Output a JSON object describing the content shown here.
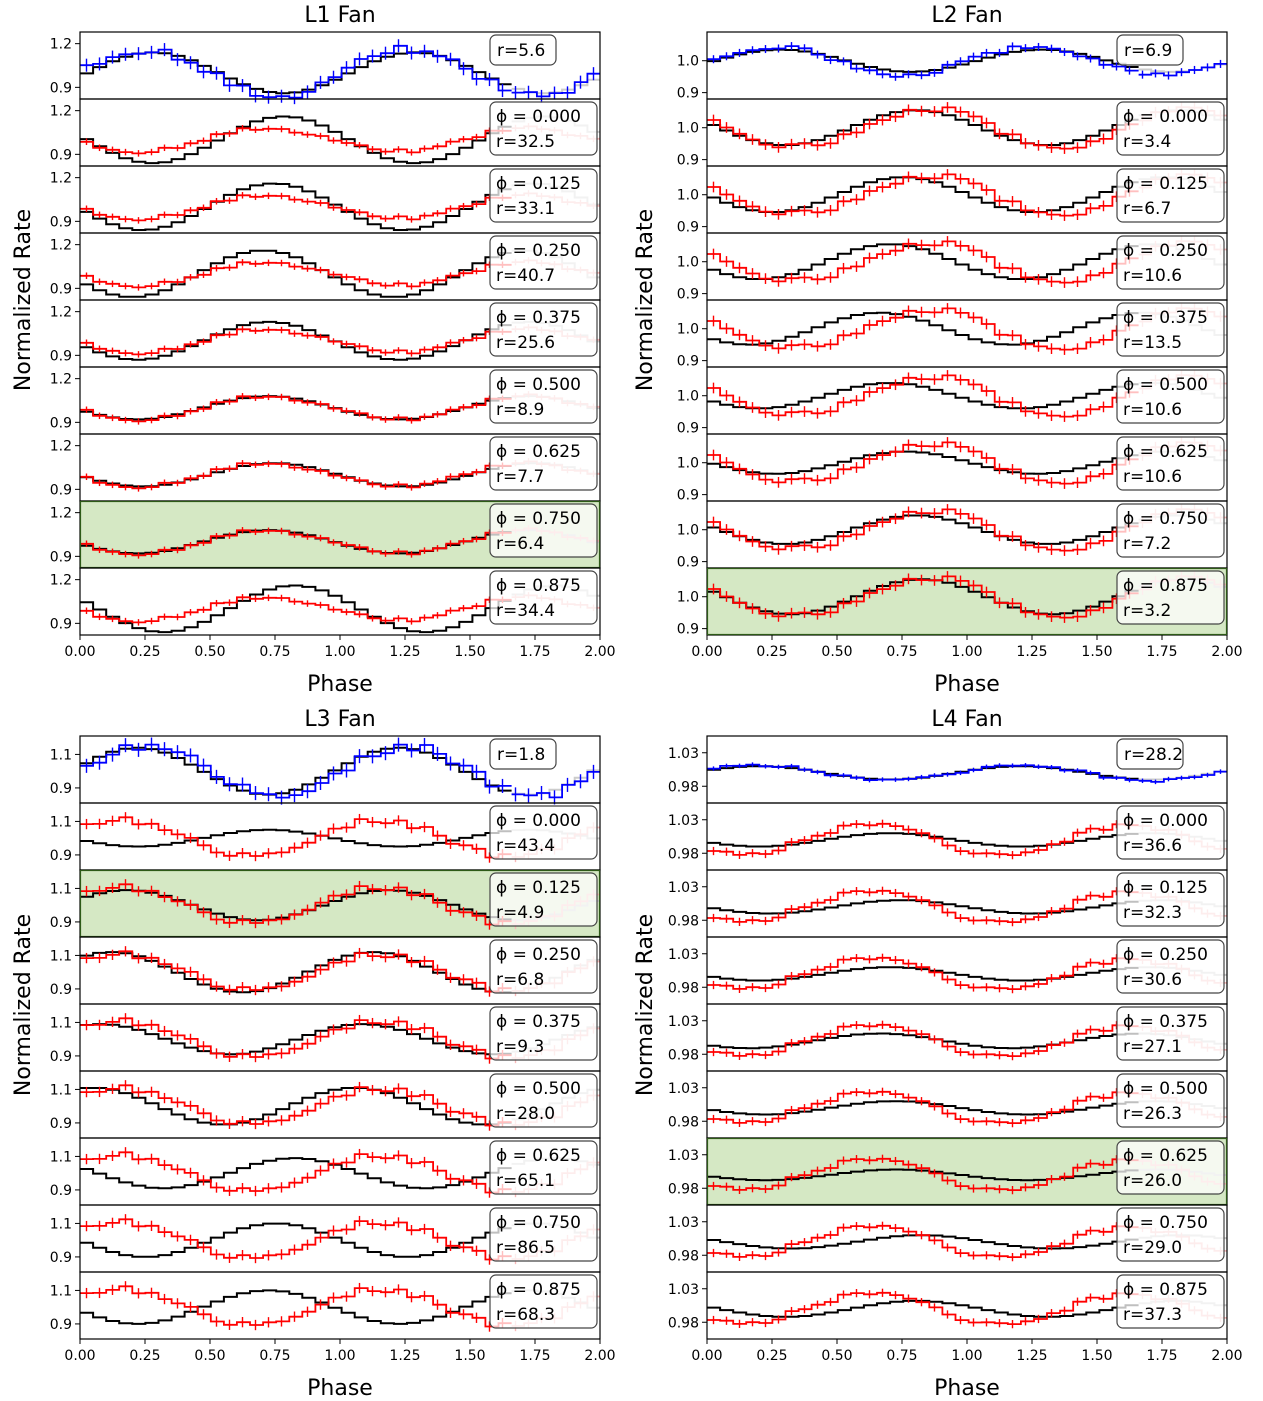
{
  "chart_data": [
    {
      "type": "line",
      "title": "L1 Fan",
      "xlabel": "Phase",
      "ylabel": "Normalized Rate",
      "xlim": [
        0,
        2
      ],
      "xticks": [
        "0.00",
        "0.25",
        "0.50",
        "0.75",
        "1.00",
        "1.25",
        "1.50",
        "1.75",
        "2.00"
      ],
      "ylim": [
        0.82,
        1.28
      ],
      "yticks": [
        "0.9",
        "1.2"
      ],
      "ytick_values": [
        0.9,
        1.2
      ],
      "top": {
        "r_label": "r=5.6",
        "ref_amp": 0.14,
        "ref_peak": 0.28,
        "obs_amp": 0.16,
        "obs_peak": 0.25
      },
      "panels": [
        {
          "phi_label": "ϕ = 0.000",
          "r_label": "r=32.5",
          "ref_amp": 0.16,
          "ref_peak": 0.78,
          "highlight": false
        },
        {
          "phi_label": "ϕ = 0.125",
          "r_label": "r=33.1",
          "ref_amp": 0.16,
          "ref_peak": 0.74,
          "highlight": false
        },
        {
          "phi_label": "ϕ = 0.250",
          "r_label": "r=40.7",
          "ref_amp": 0.16,
          "ref_peak": 0.7,
          "highlight": false
        },
        {
          "phi_label": "ϕ = 0.375",
          "r_label": "r=25.6",
          "ref_amp": 0.13,
          "ref_peak": 0.72,
          "highlight": false
        },
        {
          "phi_label": "ϕ = 0.500",
          "r_label": "r=8.9",
          "ref_amp": 0.08,
          "ref_peak": 0.72,
          "highlight": false
        },
        {
          "phi_label": "ϕ = 0.625",
          "r_label": "r=7.7",
          "ref_amp": 0.08,
          "ref_peak": 0.74,
          "highlight": false
        },
        {
          "phi_label": "ϕ = 0.750",
          "r_label": "r=6.4",
          "ref_amp": 0.08,
          "ref_peak": 0.72,
          "highlight": true
        },
        {
          "phi_label": "ϕ = 0.875",
          "r_label": "r=34.4",
          "ref_amp": 0.16,
          "ref_peak": 0.82,
          "highlight": false
        }
      ],
      "obs_amp": 0.08,
      "obs_peak": 0.72
    },
    {
      "type": "line",
      "title": "L2 Fan",
      "xlabel": "Phase",
      "ylabel": "Normalized Rate",
      "xlim": [
        0,
        2
      ],
      "xticks": [
        "0.00",
        "0.25",
        "0.50",
        "0.75",
        "1.00",
        "1.25",
        "1.50",
        "1.75",
        "2.00"
      ],
      "ylim": [
        0.88,
        1.09
      ],
      "yticks": [
        "0.9",
        "1.0"
      ],
      "ytick_values": [
        0.9,
        1.0
      ],
      "top": {
        "r_label": "r=6.9",
        "ref_amp": 0.035,
        "ref_peak": 0.28,
        "obs_amp": 0.045,
        "obs_peak": 0.25
      },
      "panels": [
        {
          "phi_label": "ϕ = 0.000",
          "r_label": "r=3.4",
          "ref_amp": 0.055,
          "ref_peak": 0.8,
          "highlight": false
        },
        {
          "phi_label": "ϕ = 0.125",
          "r_label": "r=6.7",
          "ref_amp": 0.055,
          "ref_peak": 0.75,
          "highlight": false
        },
        {
          "phi_label": "ϕ = 0.250",
          "r_label": "r=10.6",
          "ref_amp": 0.055,
          "ref_peak": 0.7,
          "highlight": false
        },
        {
          "phi_label": "ϕ = 0.375",
          "r_label": "r=13.5",
          "ref_amp": 0.05,
          "ref_peak": 0.66,
          "highlight": false
        },
        {
          "phi_label": "ϕ = 0.500",
          "r_label": "r=10.6",
          "ref_amp": 0.04,
          "ref_peak": 0.7,
          "highlight": false
        },
        {
          "phi_label": "ϕ = 0.625",
          "r_label": "r=10.6",
          "ref_amp": 0.035,
          "ref_peak": 0.76,
          "highlight": false
        },
        {
          "phi_label": "ϕ = 0.750",
          "r_label": "r=7.2",
          "ref_amp": 0.045,
          "ref_peak": 0.8,
          "highlight": false
        },
        {
          "phi_label": "ϕ = 0.875",
          "r_label": "r=3.2",
          "ref_amp": 0.055,
          "ref_peak": 0.82,
          "highlight": true
        }
      ],
      "obs_amp": 0.06,
      "obs_peak": 0.85
    },
    {
      "type": "line",
      "title": "L3 Fan",
      "xlabel": "Phase",
      "ylabel": "Normalized Rate",
      "xlim": [
        0,
        2
      ],
      "xticks": [
        "0.00",
        "0.25",
        "0.50",
        "0.75",
        "1.00",
        "1.25",
        "1.50",
        "1.75",
        "2.00"
      ],
      "ylim": [
        0.81,
        1.21
      ],
      "yticks": [
        "0.9",
        "1.1"
      ],
      "ytick_values": [
        0.9,
        1.1
      ],
      "top": {
        "r_label": "r=1.8",
        "ref_amp": 0.14,
        "ref_peak": 0.22,
        "obs_amp": 0.15,
        "obs_peak": 0.25
      },
      "panels": [
        {
          "phi_label": "ϕ = 0.000",
          "r_label": "r=43.4",
          "ref_amp": 0.05,
          "ref_peak": 0.72,
          "highlight": false
        },
        {
          "phi_label": "ϕ = 0.125",
          "r_label": "r=4.9",
          "ref_amp": 0.09,
          "ref_peak": 0.18,
          "highlight": true
        },
        {
          "phi_label": "ϕ = 0.250",
          "r_label": "r=6.8",
          "ref_amp": 0.12,
          "ref_peak": 0.12,
          "highlight": false
        },
        {
          "phi_label": "ϕ = 0.375",
          "r_label": "r=9.3",
          "ref_amp": 0.09,
          "ref_peak": 0.08,
          "highlight": false
        },
        {
          "phi_label": "ϕ = 0.500",
          "r_label": "r=28.0",
          "ref_amp": 0.11,
          "ref_peak": 0.05,
          "highlight": false
        },
        {
          "phi_label": "ϕ = 0.625",
          "r_label": "r=65.1",
          "ref_amp": 0.09,
          "ref_peak": 0.82,
          "highlight": false
        },
        {
          "phi_label": "ϕ = 0.750",
          "r_label": "r=86.5",
          "ref_amp": 0.1,
          "ref_peak": 0.75,
          "highlight": false
        },
        {
          "phi_label": "ϕ = 0.875",
          "r_label": "r=68.3",
          "ref_amp": 0.1,
          "ref_peak": 0.72,
          "highlight": false
        }
      ],
      "obs_amp": 0.11,
      "obs_peak": 0.15
    },
    {
      "type": "line",
      "title": "L4 Fan",
      "xlabel": "Phase",
      "ylabel": "Normalized Rate",
      "xlim": [
        0,
        2
      ],
      "xticks": [
        "0.00",
        "0.25",
        "0.50",
        "0.75",
        "1.00",
        "1.25",
        "1.50",
        "1.75",
        "2.00"
      ],
      "ylim": [
        0.955,
        1.055
      ],
      "yticks": [
        "0.98",
        "1.03"
      ],
      "ytick_values": [
        0.98,
        1.03
      ],
      "top": {
        "r_label": "r=28.2",
        "ref_amp": 0.01,
        "ref_peak": 0.2,
        "obs_amp": 0.012,
        "obs_peak": 0.2
      },
      "panels": [
        {
          "phi_label": "ϕ = 0.000",
          "r_label": "r=36.6",
          "ref_amp": 0.01,
          "ref_peak": 0.7,
          "highlight": false
        },
        {
          "phi_label": "ϕ = 0.125",
          "r_label": "r=32.3",
          "ref_amp": 0.01,
          "ref_peak": 0.74,
          "highlight": false
        },
        {
          "phi_label": "ϕ = 0.250",
          "r_label": "r=30.6",
          "ref_amp": 0.01,
          "ref_peak": 0.7,
          "highlight": false
        },
        {
          "phi_label": "ϕ = 0.375",
          "r_label": "r=27.1",
          "ref_amp": 0.011,
          "ref_peak": 0.66,
          "highlight": false
        },
        {
          "phi_label": "ϕ = 0.500",
          "r_label": "r=26.3",
          "ref_amp": 0.01,
          "ref_peak": 0.72,
          "highlight": false
        },
        {
          "phi_label": "ϕ = 0.625",
          "r_label": "r=26.0",
          "ref_amp": 0.008,
          "ref_peak": 0.72,
          "highlight": true
        },
        {
          "phi_label": "ϕ = 0.750",
          "r_label": "r=29.0",
          "ref_amp": 0.01,
          "ref_peak": 0.82,
          "highlight": false
        },
        {
          "phi_label": "ϕ = 0.875",
          "r_label": "r=37.3",
          "ref_amp": 0.012,
          "ref_peak": 0.8,
          "highlight": false
        }
      ],
      "obs_amp": 0.022,
      "obs_peak": 0.62
    }
  ],
  "colors": {
    "observed_top": "#0000ff",
    "observed": "#ff0000",
    "model": "#000000",
    "model_faded": "#cccccc",
    "highlight_fill": "#d5e8c4",
    "highlight_edge": "#2d5a17"
  }
}
